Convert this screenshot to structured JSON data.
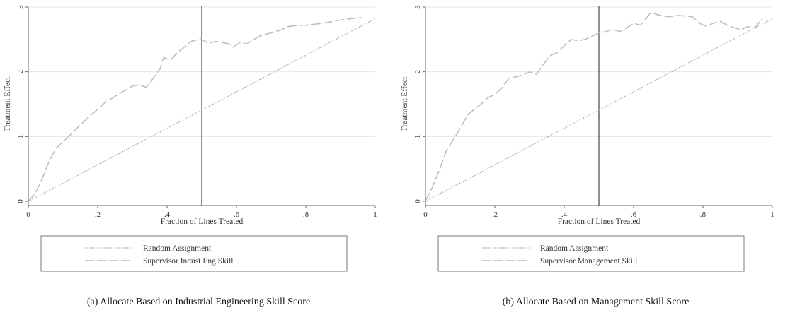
{
  "chart_data": [
    {
      "type": "line",
      "xlabel": "Fraction of Lines Treated",
      "ylabel": "Treatment Effect",
      "xlim": [
        0,
        1
      ],
      "ylim": [
        0,
        3
      ],
      "xticks": [
        0,
        0.2,
        0.4,
        0.6,
        0.8,
        1
      ],
      "xtick_labels": [
        "0",
        ".2",
        ".4",
        ".6",
        ".8",
        "1"
      ],
      "yticks": [
        0,
        1,
        2,
        3
      ],
      "ytick_labels": [
        "0",
        "1",
        "2",
        "3"
      ],
      "grid": true,
      "vline_x": 0.5,
      "legend_position": "bottom",
      "caption": "(a) Allocate Based on Industrial Engineering Skill Score",
      "series": [
        {
          "name": "Random Assignment",
          "style": "dotted",
          "points": [
            [
              0,
              0
            ],
            [
              1,
              2.82
            ]
          ]
        },
        {
          "name": "Supervisor Indust Eng Skill",
          "style": "dashed",
          "points": [
            [
              0,
              0
            ],
            [
              0.02,
              0.12
            ],
            [
              0.04,
              0.35
            ],
            [
              0.06,
              0.62
            ],
            [
              0.08,
              0.82
            ],
            [
              0.1,
              0.92
            ],
            [
              0.12,
              1.02
            ],
            [
              0.15,
              1.18
            ],
            [
              0.18,
              1.33
            ],
            [
              0.2,
              1.42
            ],
            [
              0.22,
              1.52
            ],
            [
              0.25,
              1.62
            ],
            [
              0.28,
              1.72
            ],
            [
              0.3,
              1.78
            ],
            [
              0.32,
              1.8
            ],
            [
              0.34,
              1.76
            ],
            [
              0.36,
              1.9
            ],
            [
              0.38,
              2.05
            ],
            [
              0.39,
              2.22
            ],
            [
              0.41,
              2.18
            ],
            [
              0.43,
              2.3
            ],
            [
              0.45,
              2.38
            ],
            [
              0.47,
              2.47
            ],
            [
              0.49,
              2.5
            ],
            [
              0.5,
              2.5
            ],
            [
              0.52,
              2.44
            ],
            [
              0.54,
              2.47
            ],
            [
              0.56,
              2.45
            ],
            [
              0.58,
              2.43
            ],
            [
              0.59,
              2.38
            ],
            [
              0.61,
              2.45
            ],
            [
              0.63,
              2.43
            ],
            [
              0.65,
              2.5
            ],
            [
              0.67,
              2.56
            ],
            [
              0.7,
              2.6
            ],
            [
              0.73,
              2.65
            ],
            [
              0.75,
              2.7
            ],
            [
              0.78,
              2.72
            ],
            [
              0.8,
              2.72
            ],
            [
              0.85,
              2.75
            ],
            [
              0.9,
              2.8
            ],
            [
              0.96,
              2.84
            ]
          ]
        }
      ]
    },
    {
      "type": "line",
      "xlabel": "Fraction of Lines Treated",
      "ylabel": "Treatment Effect",
      "xlim": [
        0,
        1
      ],
      "ylim": [
        0,
        3
      ],
      "xticks": [
        0,
        0.2,
        0.4,
        0.6,
        0.8,
        1
      ],
      "xtick_labels": [
        "0",
        ".2",
        ".4",
        ".6",
        ".8",
        "1"
      ],
      "yticks": [
        0,
        1,
        2,
        3
      ],
      "ytick_labels": [
        "0",
        "1",
        "2",
        "3"
      ],
      "grid": true,
      "vline_x": 0.5,
      "legend_position": "bottom",
      "caption": "(b) Allocate Based on Management Skill Score",
      "series": [
        {
          "name": "Random Assignment",
          "style": "dotted",
          "points": [
            [
              0,
              0
            ],
            [
              1,
              2.82
            ]
          ]
        },
        {
          "name": "Supervisor Management Skill",
          "style": "dashed",
          "points": [
            [
              0,
              0
            ],
            [
              0.02,
              0.22
            ],
            [
              0.04,
              0.48
            ],
            [
              0.06,
              0.78
            ],
            [
              0.08,
              0.95
            ],
            [
              0.1,
              1.12
            ],
            [
              0.12,
              1.32
            ],
            [
              0.14,
              1.42
            ],
            [
              0.16,
              1.5
            ],
            [
              0.18,
              1.6
            ],
            [
              0.2,
              1.65
            ],
            [
              0.22,
              1.75
            ],
            [
              0.24,
              1.9
            ],
            [
              0.26,
              1.92
            ],
            [
              0.28,
              1.95
            ],
            [
              0.3,
              2.0
            ],
            [
              0.32,
              1.96
            ],
            [
              0.34,
              2.12
            ],
            [
              0.36,
              2.25
            ],
            [
              0.38,
              2.3
            ],
            [
              0.4,
              2.4
            ],
            [
              0.42,
              2.5
            ],
            [
              0.44,
              2.48
            ],
            [
              0.46,
              2.5
            ],
            [
              0.48,
              2.55
            ],
            [
              0.5,
              2.6
            ],
            [
              0.52,
              2.62
            ],
            [
              0.54,
              2.66
            ],
            [
              0.56,
              2.62
            ],
            [
              0.58,
              2.68
            ],
            [
              0.6,
              2.75
            ],
            [
              0.62,
              2.72
            ],
            [
              0.64,
              2.85
            ],
            [
              0.65,
              2.92
            ],
            [
              0.67,
              2.88
            ],
            [
              0.7,
              2.85
            ],
            [
              0.73,
              2.87
            ],
            [
              0.75,
              2.86
            ],
            [
              0.77,
              2.85
            ],
            [
              0.79,
              2.75
            ],
            [
              0.81,
              2.7
            ],
            [
              0.83,
              2.75
            ],
            [
              0.85,
              2.78
            ],
            [
              0.87,
              2.72
            ],
            [
              0.89,
              2.68
            ],
            [
              0.91,
              2.65
            ],
            [
              0.93,
              2.7
            ],
            [
              0.95,
              2.68
            ],
            [
              0.97,
              2.82
            ]
          ]
        }
      ]
    }
  ]
}
